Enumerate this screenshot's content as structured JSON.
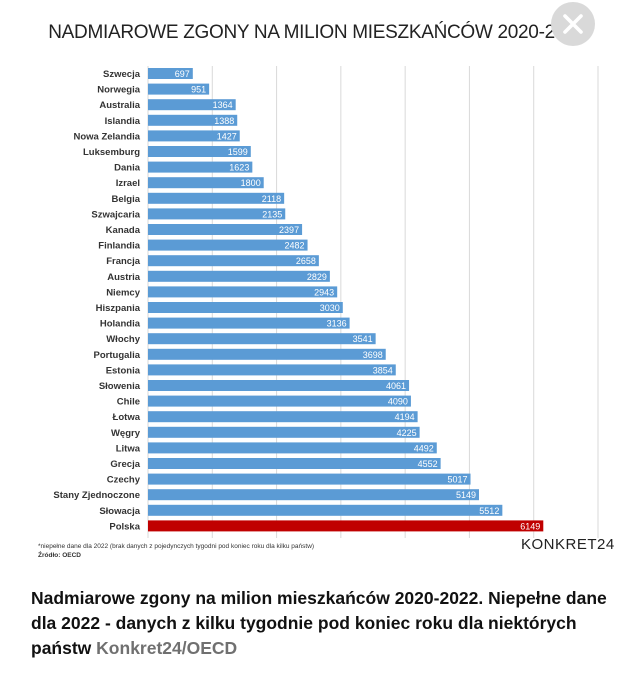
{
  "chart_data": {
    "type": "bar",
    "title": "NADMIAROWE ZGONY NA MILION MIESZKAŃCÓW 2020-2022*",
    "categories": [
      "Szwecja",
      "Norwegia",
      "Australia",
      "Islandia",
      "Nowa Zelandia",
      "Luksemburg",
      "Dania",
      "Izrael",
      "Belgia",
      "Szwajcaria",
      "Kanada",
      "Finlandia",
      "Francja",
      "Austria",
      "Niemcy",
      "Hiszpania",
      "Holandia",
      "Włochy",
      "Portugalia",
      "Estonia",
      "Słowenia",
      "Chile",
      "Łotwa",
      "Węgry",
      "Litwa",
      "Grecja",
      "Czechy",
      "Stany Zjednoczone",
      "Słowacja",
      "Polska"
    ],
    "values": [
      697,
      951,
      1364,
      1388,
      1427,
      1599,
      1623,
      1800,
      2118,
      2135,
      2397,
      2482,
      2658,
      2829,
      2943,
      3030,
      3136,
      3541,
      3698,
      3854,
      4061,
      4090,
      4194,
      4225,
      4492,
      4552,
      5017,
      5149,
      5512,
      6149
    ],
    "orientation": "horizontal",
    "xlim": [
      0,
      7000
    ],
    "grid": true,
    "colors": {
      "default": "#5b9bd5",
      "highlight": "#c00000",
      "highlight_category": "Polska",
      "grid": "#d9d9d9"
    }
  },
  "footnote": {
    "note": "*niepełne dane dla 2022 (brak danych z pojedynczych tygodni pod koniec roku dla kilku państw)",
    "source": "Źródło: OECD"
  },
  "brand": "KONKRET24",
  "close_icon": "close-icon",
  "caption": {
    "text": "Nadmiarowe zgony na milion mieszkańców 2020-2022. Niepełne dane dla 2022 - danych z kilku tygodnie pod koniec roku dla niektórych państw",
    "source": "Konkret24/OECD"
  }
}
